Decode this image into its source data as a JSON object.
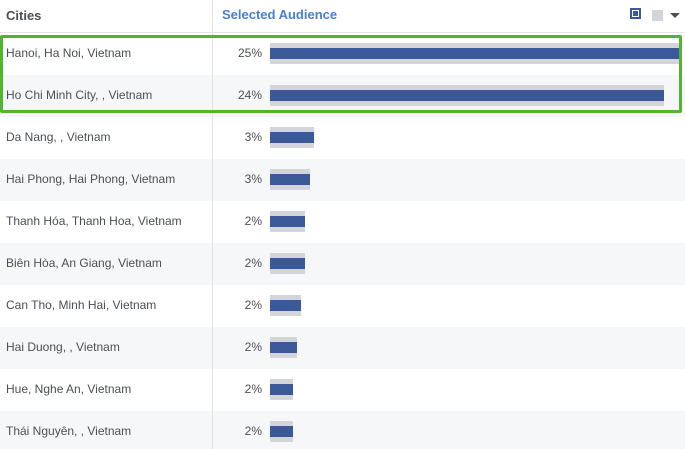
{
  "header": {
    "cities_label": "Cities",
    "audience_label": "Selected Audience",
    "legend_icon": "selected-audience-swatch",
    "legend_alt_icon": "all-audience-swatch",
    "menu_icon": "caret-down-icon"
  },
  "colors": {
    "accent": "#3b5998",
    "bar_background": "#d3d5da",
    "header_link": "#4a7ed6",
    "highlight": "#52b52f"
  },
  "rows": [
    {
      "city": "Hanoi, Ha Noi, Vietnam",
      "pct": "25%",
      "selected": 0.25,
      "all": 0.25
    },
    {
      "city": "Ho Chi Minh City, , Vietnam",
      "pct": "24%",
      "selected": 0.24,
      "all": 0.24
    },
    {
      "city": "Da Nang, , Vietnam",
      "pct": "3%",
      "selected": 0.03,
      "all": 0.03
    },
    {
      "city": "Hai Phong, Hai Phong, Vietnam",
      "pct": "3%",
      "selected": 0.03,
      "all": 0.03
    },
    {
      "city": "Thanh Hóa, Thanh Hoa, Vietnam",
      "pct": "2%",
      "selected": 0.02,
      "all": 0.02
    },
    {
      "city": "Biên Hòa, An Giang, Vietnam",
      "pct": "2%",
      "selected": 0.02,
      "all": 0.02
    },
    {
      "city": "Can Tho, Minh Hai, Vietnam",
      "pct": "2%",
      "selected": 0.02,
      "all": 0.02
    },
    {
      "city": "Hai Duong, , Vietnam",
      "pct": "2%",
      "selected": 0.02,
      "all": 0.02
    },
    {
      "city": "Hue, Nghe An, Vietnam",
      "pct": "2%",
      "selected": 0.02,
      "all": 0.02
    },
    {
      "city": "Thái Nguyên, , Vietnam",
      "pct": "2%",
      "selected": 0.02,
      "all": 0.02
    }
  ],
  "highlighted_rows": [
    "Hanoi, Ha Noi, Vietnam",
    "Ho Chi Minh City, , Vietnam"
  ]
}
